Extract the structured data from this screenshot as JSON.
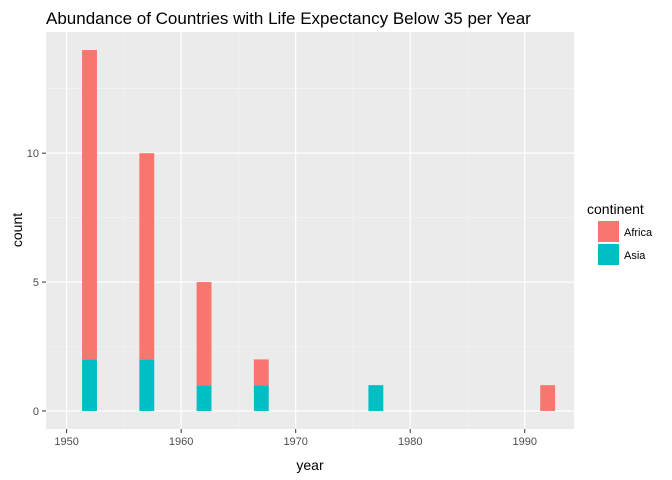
{
  "chart_data": {
    "type": "bar",
    "stacked": true,
    "title": "Abundance of Countries with Life Expectancy Below 35 per Year",
    "xlabel": "year",
    "ylabel": "count",
    "xlim": [
      1948.2,
      1994.3
    ],
    "ylim": [
      -0.7,
      14.7
    ],
    "xticks": [
      1950,
      1960,
      1970,
      1980,
      1990
    ],
    "yticks": [
      0,
      5,
      10
    ],
    "bin_width": 1.3,
    "grid": true,
    "legend": {
      "title": "continent",
      "position": "right"
    },
    "series": [
      {
        "name": "Africa",
        "color": "#F8766D",
        "x": [
          1952,
          1957,
          1962,
          1967,
          1977,
          1992
        ],
        "values": [
          12,
          8,
          4,
          1,
          0,
          1
        ]
      },
      {
        "name": "Asia",
        "color": "#00BFC4",
        "x": [
          1952,
          1957,
          1962,
          1967,
          1977,
          1992
        ],
        "values": [
          2,
          2,
          1,
          1,
          1,
          0
        ]
      }
    ]
  }
}
